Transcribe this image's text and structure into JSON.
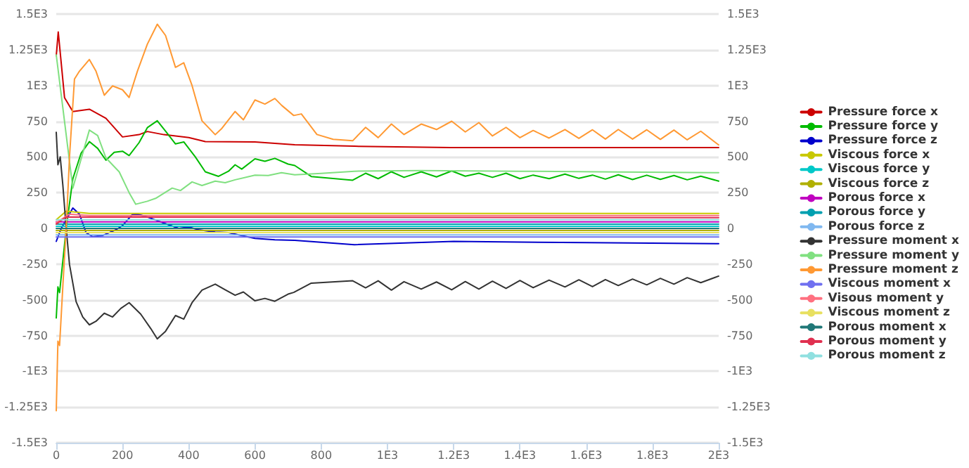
{
  "chart_data": {
    "type": "line",
    "legend": "right",
    "grid": "y",
    "marker": "none",
    "line_style": "solid",
    "xlim": [
      0,
      2000
    ],
    "xticks": [
      0,
      200,
      400,
      600,
      800,
      {
        "value": 1000,
        "label": "1E3"
      },
      {
        "value": 1200,
        "label": "1.2E3"
      },
      {
        "value": 1400,
        "label": "1.4E3"
      },
      {
        "value": 1600,
        "label": "1.6E3"
      },
      {
        "value": 1800,
        "label": "1.8E3"
      },
      {
        "value": 2000,
        "label": "2E3"
      }
    ],
    "ylim": [
      -1500,
      1500
    ],
    "yticks": [
      {
        "value": -1500,
        "label": "-1.5E3"
      },
      {
        "value": -1250,
        "label": "-1.25E3"
      },
      {
        "value": -1000,
        "label": "-1E3"
      },
      -750,
      -500,
      -250,
      0,
      250,
      500,
      750,
      {
        "value": 1000,
        "label": "1E3"
      },
      {
        "value": 1250,
        "label": "1.25E3"
      },
      {
        "value": 1500,
        "label": "1.5E3"
      }
    ],
    "y2lim": [
      -1500,
      1500
    ],
    "y2ticks": [
      {
        "value": -1500,
        "label": "-1.5E3"
      },
      {
        "value": -1250,
        "label": "-1.25E3"
      },
      {
        "value": -1000,
        "label": "-1E3"
      },
      -750,
      -500,
      -250,
      0,
      250,
      500,
      750,
      {
        "value": 1000,
        "label": "1E3"
      },
      {
        "value": 1250,
        "label": "1.25E3"
      },
      {
        "value": 1500,
        "label": "1.5E3"
      }
    ],
    "series": [
      {
        "name": "Pressure force x",
        "color": "#cc0000",
        "x": [
          0,
          6,
          25,
          50,
          100,
          150,
          200,
          250,
          275,
          325,
          400,
          450,
          600,
          720,
          900,
          1190,
          1600,
          2000
        ],
        "values": [
          1208,
          1375,
          915,
          818,
          834,
          770,
          640,
          656,
          678,
          656,
          636,
          607,
          605,
          585,
          575,
          565,
          565,
          566
        ]
      },
      {
        "name": "Pressure force y",
        "color": "#00bb00",
        "x": [
          0,
          5,
          10,
          30,
          50,
          75,
          100,
          125,
          150,
          175,
          200,
          220,
          250,
          275,
          305,
          330,
          360,
          385,
          420,
          450,
          490,
          520,
          540,
          560,
          600,
          630,
          660,
          700,
          720,
          770,
          895,
          934,
          972,
          1012,
          1050,
          1102,
          1148,
          1194,
          1235,
          1276,
          1317,
          1358,
          1400,
          1440,
          1488,
          1536,
          1578,
          1619,
          1658,
          1697,
          1740,
          1783,
          1824,
          1865,
          1905,
          1946,
          2000
        ],
        "values": [
          -627,
          -409,
          -450,
          0,
          347,
          526,
          607,
          560,
          477,
          532,
          540,
          510,
          600,
          705,
          753,
          680,
          591,
          605,
          500,
          396,
          364,
          400,
          445,
          415,
          487,
          470,
          490,
          450,
          440,
          363,
          337,
          386,
          348,
          396,
          357,
          396,
          360,
          402,
          365,
          386,
          357,
          386,
          348,
          373,
          348,
          380,
          350,
          373,
          345,
          375,
          342,
          372,
          343,
          370,
          340,
          365,
          331
        ]
      },
      {
        "name": "Pressure force z",
        "color": "#0000cc",
        "x": [
          0,
          15,
          50,
          70,
          90,
          110,
          140,
          180,
          200,
          230,
          245,
          275,
          310,
          370,
          400,
          430,
          480,
          520,
          560,
          600,
          660,
          720,
          900,
          1200,
          1600,
          2000
        ],
        "values": [
          -91,
          0,
          143,
          100,
          -30,
          -58,
          -50,
          -10,
          20,
          97,
          100,
          80,
          50,
          0,
          10,
          -10,
          -26,
          -30,
          -50,
          -70,
          -80,
          -84,
          -114,
          -91,
          -100,
          -107
        ]
      },
      {
        "name": "Viscous force x",
        "color": "#c8c800",
        "x": [
          0,
          30,
          100,
          2000
        ],
        "values": [
          60,
          120,
          105,
          105
        ]
      },
      {
        "name": "Viscous force y",
        "color": "#00c8c8",
        "x": [
          0,
          2000
        ],
        "values": [
          15,
          15
        ]
      },
      {
        "name": "Viscous force z",
        "color": "#b0b000",
        "x": [
          0,
          2000
        ],
        "values": [
          -15,
          -15
        ]
      },
      {
        "name": "Porous force x",
        "color": "#c000c0",
        "x": [
          0,
          2000
        ],
        "values": [
          45,
          45
        ]
      },
      {
        "name": "Porous force y",
        "color": "#00a0b0",
        "x": [
          0,
          2000
        ],
        "values": [
          30,
          30
        ]
      },
      {
        "name": "Porous force z",
        "color": "#80b8f0",
        "x": [
          0,
          2000
        ],
        "values": [
          -45,
          -45
        ]
      },
      {
        "name": "Pressure moment x",
        "color": "#333333",
        "x": [
          0,
          5,
          12,
          20,
          30,
          40,
          60,
          80,
          100,
          120,
          145,
          170,
          195,
          220,
          255,
          285,
          305,
          330,
          360,
          385,
          410,
          440,
          480,
          510,
          540,
          565,
          600,
          630,
          660,
          700,
          717,
          770,
          895,
          934,
          972,
          1012,
          1050,
          1102,
          1148,
          1194,
          1235,
          1276,
          1317,
          1358,
          1400,
          1440,
          1488,
          1536,
          1578,
          1619,
          1658,
          1697,
          1740,
          1783,
          1824,
          1865,
          1905,
          1946,
          2000
        ],
        "values": [
          672,
          445,
          500,
          300,
          0,
          -253,
          -513,
          -620,
          -675,
          -650,
          -594,
          -620,
          -560,
          -520,
          -600,
          -700,
          -773,
          -720,
          -610,
          -635,
          -520,
          -432,
          -390,
          -430,
          -468,
          -445,
          -507,
          -490,
          -510,
          -460,
          -448,
          -383,
          -367,
          -416,
          -367,
          -432,
          -373,
          -425,
          -375,
          -430,
          -372,
          -425,
          -370,
          -420,
          -365,
          -415,
          -362,
          -410,
          -360,
          -408,
          -358,
          -400,
          -355,
          -395,
          -350,
          -390,
          -345,
          -380,
          -334
        ]
      },
      {
        "name": "Pressure moment y",
        "color": "#80e080",
        "x": [
          0,
          50,
          100,
          125,
          150,
          190,
          220,
          240,
          275,
          300,
          350,
          375,
          410,
          440,
          480,
          510,
          540,
          600,
          640,
          680,
          720,
          800,
          900,
          1100,
          1400,
          1700,
          2000
        ],
        "values": [
          1214,
          282,
          688,
          650,
          493,
          396,
          250,
          169,
          190,
          210,
          282,
          265,
          325,
          300,
          331,
          320,
          340,
          373,
          370,
          390,
          375,
          385,
          400,
          405,
          400,
          395,
          390
        ]
      },
      {
        "name": "Pressure moment z",
        "color": "#ff9933",
        "x": [
          0,
          5,
          10,
          20,
          30,
          40,
          55,
          70,
          100,
          120,
          145,
          170,
          200,
          220,
          245,
          275,
          305,
          330,
          360,
          385,
          410,
          440,
          480,
          500,
          540,
          565,
          600,
          630,
          660,
          681,
          717,
          740,
          787,
          836,
          895,
          934,
          972,
          1012,
          1050,
          1102,
          1148,
          1194,
          1235,
          1276,
          1317,
          1358,
          1400,
          1440,
          1488,
          1536,
          1578,
          1619,
          1658,
          1697,
          1740,
          1783,
          1824,
          1865,
          1905,
          1946,
          2000
        ],
        "values": [
          -1276,
          -789,
          -820,
          -400,
          0,
          500,
          1045,
          1100,
          1182,
          1100,
          932,
          997,
          970,
          916,
          1100,
          1289,
          1429,
          1350,
          1127,
          1159,
          1000,
          753,
          656,
          700,
          818,
          760,
          899,
          870,
          909,
          860,
          790,
          801,
          657,
          623,
          613,
          707,
          635,
          730,
          657,
          730,
          692,
          750,
          675,
          740,
          647,
          707,
          635,
          685,
          632,
          692,
          630,
          690,
          625,
          692,
          625,
          690,
          623,
          688,
          620,
          680,
          584
        ]
      },
      {
        "name": "Viscous moment x",
        "color": "#7070f0",
        "x": [
          0,
          2000
        ],
        "values": [
          -60,
          -60
        ]
      },
      {
        "name": "Visous moment y",
        "color": "#ff7080",
        "x": [
          0,
          40,
          100,
          2000
        ],
        "values": [
          40,
          100,
          90,
          90
        ]
      },
      {
        "name": "Viscous moment z",
        "color": "#e8e060",
        "x": [
          0,
          2000
        ],
        "values": [
          -30,
          -30
        ]
      },
      {
        "name": "Porous moment x",
        "color": "#207878",
        "x": [
          0,
          2000
        ],
        "values": [
          0,
          0
        ]
      },
      {
        "name": "Porous moment y",
        "color": "#e03050",
        "x": [
          0,
          30,
          2000
        ],
        "values": [
          30,
          80,
          75
        ]
      },
      {
        "name": "Porous moment z",
        "color": "#90e0e0",
        "x": [
          0,
          2000
        ],
        "values": [
          60,
          60
        ]
      }
    ]
  }
}
